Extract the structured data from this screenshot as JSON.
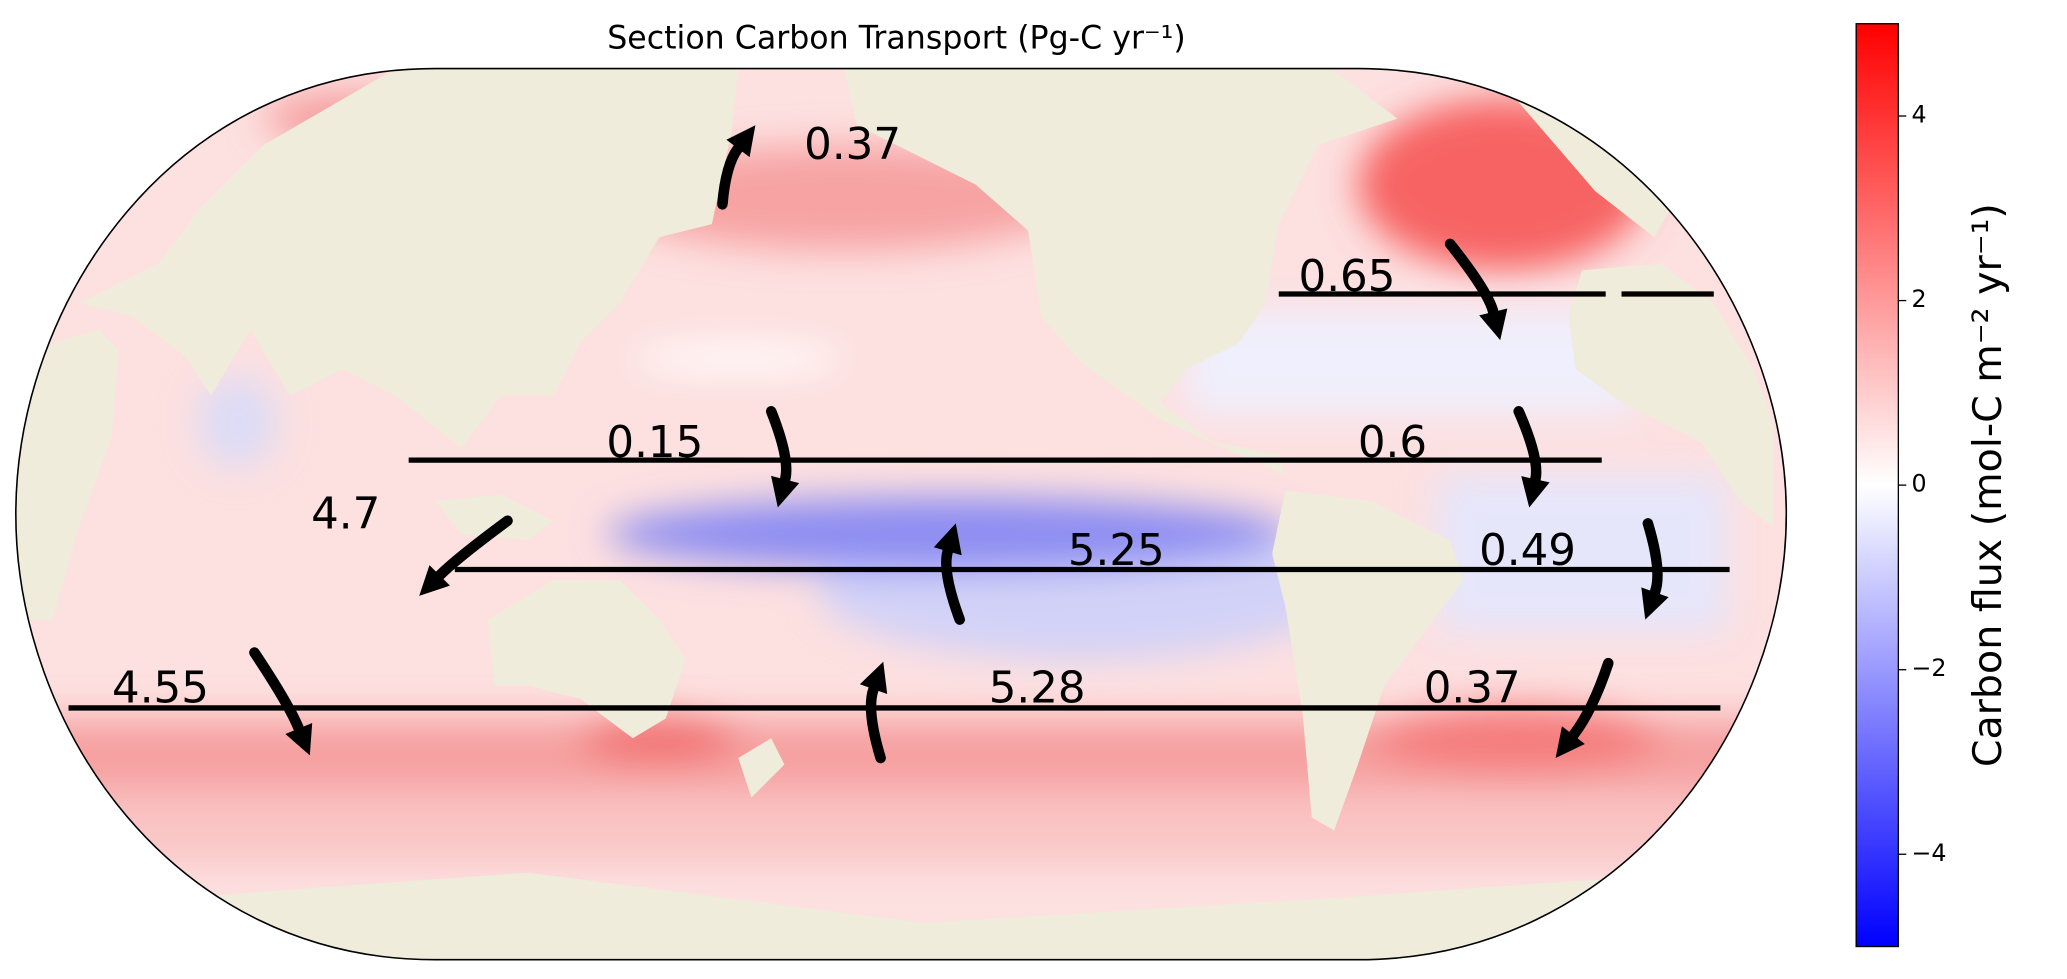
{
  "title": "Section Carbon Transport (Pg-C yr⁻¹)",
  "transports": [
    0.37,
    0.65,
    0.15,
    0.6,
    4.7,
    5.25,
    0.49,
    4.55,
    5.28,
    0.37
  ],
  "colorbar": {
    "label": "Carbon flux (mol-C m⁻² yr⁻¹)",
    "lim": [
      -5,
      5
    ],
    "ticks": [
      {
        "value": -4,
        "label": "−4"
      },
      {
        "value": -2,
        "label": "−2"
      },
      0,
      2,
      4
    ],
    "colors": [
      "#0000ff",
      "#ffffff",
      "#ff0000"
    ]
  }
}
